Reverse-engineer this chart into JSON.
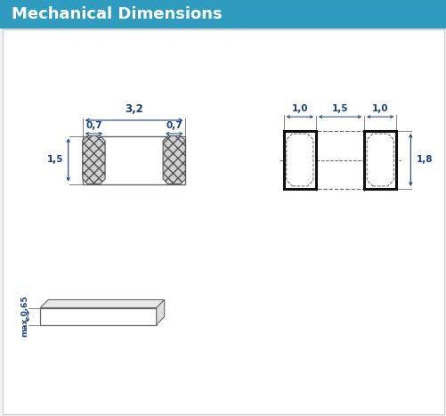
{
  "title": "Mechanical Dimensions",
  "title_bg": "#2e9bbf",
  "title_color": "#ffffff",
  "bg_color": "#f2f2f2",
  "draw_color": "#666666",
  "dim_color": "#1a3f7a",
  "bold_line_color": "#111111",
  "fig_w": 5.02,
  "fig_h": 4.67,
  "dpi": 100
}
